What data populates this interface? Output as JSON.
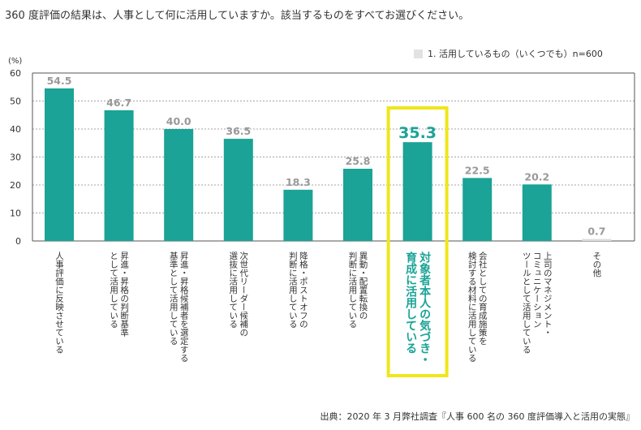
{
  "title": "360 度評価の結果は、人事として何に活用していますか。該当するものをすべてお選びください。",
  "legend": {
    "label": "1. 活用しているもの（いくつでも）n=600"
  },
  "source": "出典：2020 年 3 月弊社調査『人事 600 名の 360 度評価導入と活用の実態』",
  "colors": {
    "bar": "#1aa396",
    "bar_light": "#e2e2e2",
    "value": "#999999",
    "highlight_value": "#1aa396",
    "highlight_border": "#f0e61a"
  },
  "chart_data": {
    "type": "bar",
    "title": "",
    "ylabel": "(%)",
    "ylim": [
      0,
      60
    ],
    "yticks": [
      0,
      10,
      20,
      30,
      40,
      50,
      60
    ],
    "grid": true,
    "highlight_index": 6,
    "categories": [
      [
        "人事評価に反映させている"
      ],
      [
        "昇進・昇格の判断基準",
        "として活用している"
      ],
      [
        "昇進・昇格候補者を選定する",
        "基準として活用している"
      ],
      [
        "次世代リーダー候補の",
        "選抜に活用している"
      ],
      [
        "降格・ポストオフの",
        "判断に活用している"
      ],
      [
        "異動・配置転換の",
        "判断に活用している"
      ],
      [
        "対象者本人の気づき・",
        "育成に活用している"
      ],
      [
        "会社としての育成施策を",
        "検討する材料に活用している"
      ],
      [
        "上司のマネジメント・",
        "コミュニケーション",
        "ツールとして活用している"
      ],
      [
        "その他"
      ]
    ],
    "values": [
      54.5,
      46.7,
      40.0,
      36.5,
      18.3,
      25.8,
      35.3,
      22.5,
      20.2,
      0.7
    ],
    "value_labels": [
      "54.5",
      "46.7",
      "40.0",
      "36.5",
      "18.3",
      "25.8",
      "35.3",
      "22.5",
      "20.2",
      "0.7"
    ]
  }
}
